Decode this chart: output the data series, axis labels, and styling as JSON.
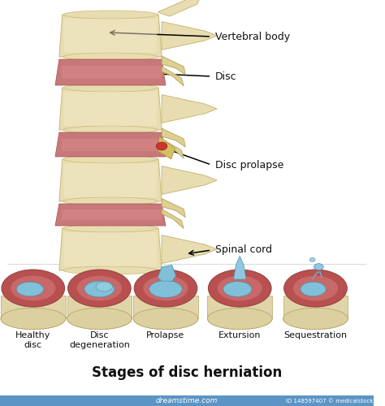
{
  "background_color": "#ffffff",
  "title": "Stages of disc herniation",
  "title_fontsize": 12,
  "title_fontweight": "bold",
  "labels_spine": [
    "Vertebral body",
    "Disc",
    "Disc prolapse",
    "Spinal cord"
  ],
  "labels_stages": [
    "Healthy\ndisc",
    "Disc\ndegeneration",
    "Prolapse",
    "Extursion",
    "Sequestration"
  ],
  "vertebra_color": "#e8ddb0",
  "vertebra_edge": "#c8b878",
  "disc_red": "#c87878",
  "disc_inner_color": "#add8e6",
  "nucleus_color": "#90c8d8",
  "text_color": "#111111",
  "arrow_color": "#111111",
  "stage_label_fontsize": 8,
  "annotation_fontsize": 9,
  "process_color": "#ddd090",
  "process_edge": "#b8a060",
  "annulus_outer": "#b85858",
  "annulus_mid": "#cc7070",
  "bone_endplate": "#e0d4a8",
  "watermark_color": "#4a8abf"
}
